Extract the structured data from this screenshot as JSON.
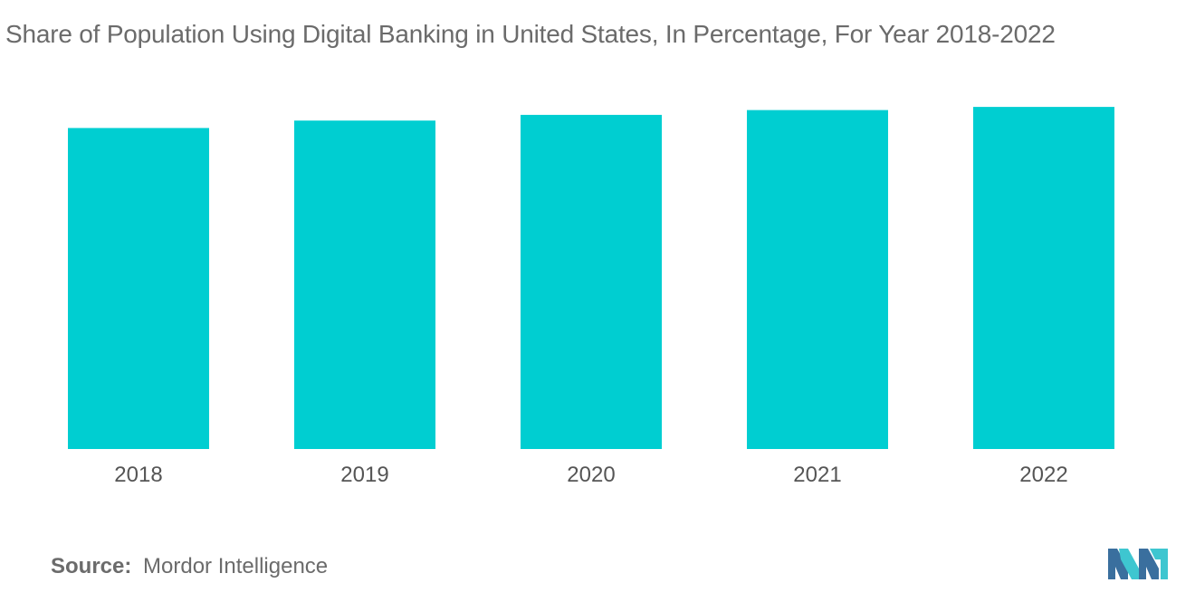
{
  "chart_data": {
    "type": "bar",
    "title": "Share of Population Using Digital Banking in United States, In Percentage, For Year 2018-2022",
    "categories": [
      "2018",
      "2019",
      "2020",
      "2021",
      "2022"
    ],
    "values": [
      61.0,
      62.4,
      63.5,
      64.4,
      65.0
    ],
    "xlabel": "",
    "ylabel": "",
    "ylim": [
      0,
      75
    ],
    "grid": false,
    "legend": "none",
    "bar_color": "#00CED1"
  },
  "source": {
    "label": "Source:",
    "text": "Mordor Intelligence"
  },
  "logo": {
    "icon": "mordor-intelligence-logo-icon",
    "colors": [
      "#3a6f9e",
      "#3ec6d0"
    ]
  }
}
